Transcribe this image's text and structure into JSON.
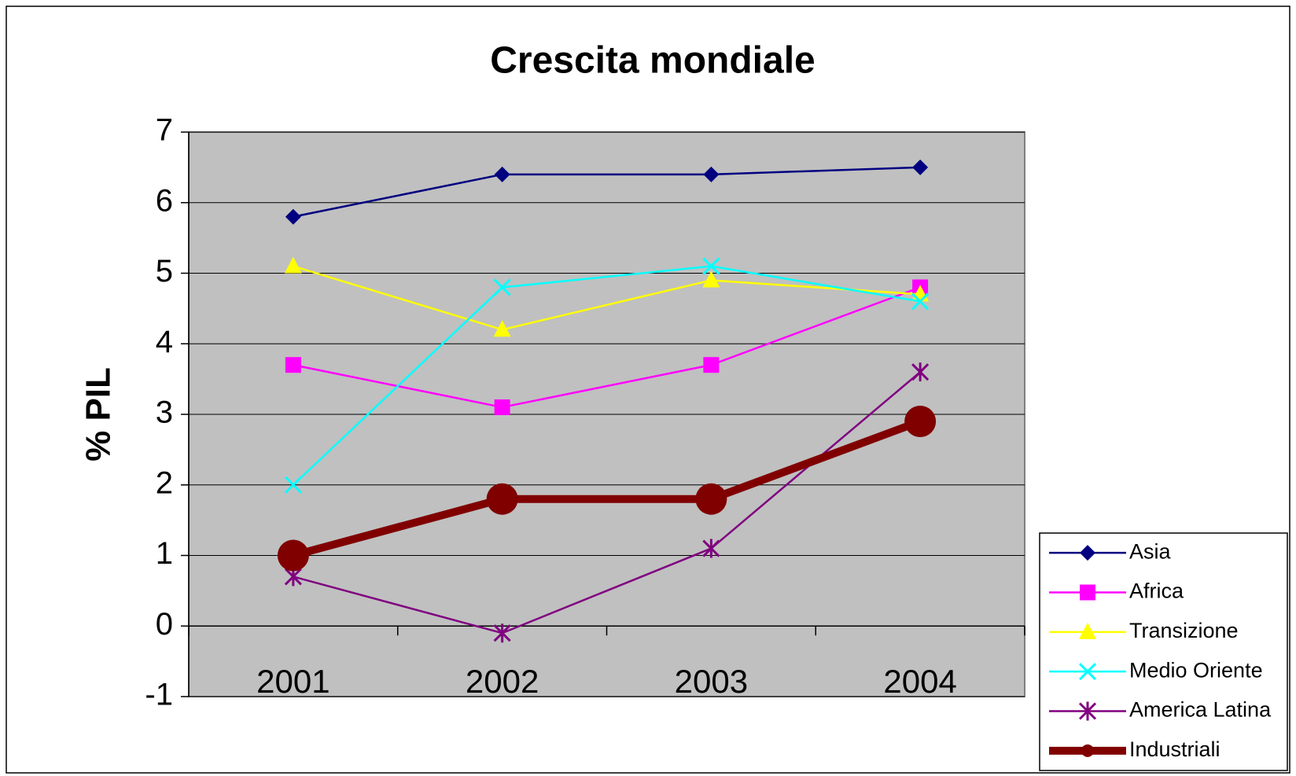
{
  "chart_data": {
    "type": "line",
    "title": "Crescita mondiale",
    "y_label": "% PIL",
    "categories": [
      "2001",
      "2002",
      "2003",
      "2004"
    ],
    "series": [
      {
        "name": "Asia",
        "color": "#000080",
        "marker": "diamond",
        "line_width": 2.5,
        "values": [
          5.8,
          6.4,
          6.4,
          6.5
        ]
      },
      {
        "name": "Africa",
        "color": "#ff00ff",
        "marker": "square",
        "line_width": 2.5,
        "values": [
          3.7,
          3.1,
          3.7,
          4.8
        ]
      },
      {
        "name": "Transizione",
        "color": "#ffff00",
        "marker": "triangle",
        "line_width": 2.5,
        "values": [
          5.1,
          4.2,
          4.9,
          4.7
        ]
      },
      {
        "name": "Medio Oriente",
        "color": "#00ffff",
        "marker": "x",
        "line_width": 2.5,
        "values": [
          2.0,
          4.8,
          5.1,
          4.6
        ]
      },
      {
        "name": "America Latina",
        "color": "#800080",
        "marker": "star",
        "line_width": 2.5,
        "values": [
          0.7,
          -0.1,
          1.1,
          3.6
        ]
      },
      {
        "name": "Industriali",
        "color": "#800000",
        "marker": "circle",
        "line_width": 10,
        "values": [
          1.0,
          1.8,
          1.8,
          2.9
        ]
      }
    ],
    "ylim": [
      -1,
      7
    ],
    "yticks": [
      -1,
      0,
      1,
      2,
      3,
      4,
      5,
      6,
      7
    ],
    "grid": true,
    "legend": "lower right"
  }
}
